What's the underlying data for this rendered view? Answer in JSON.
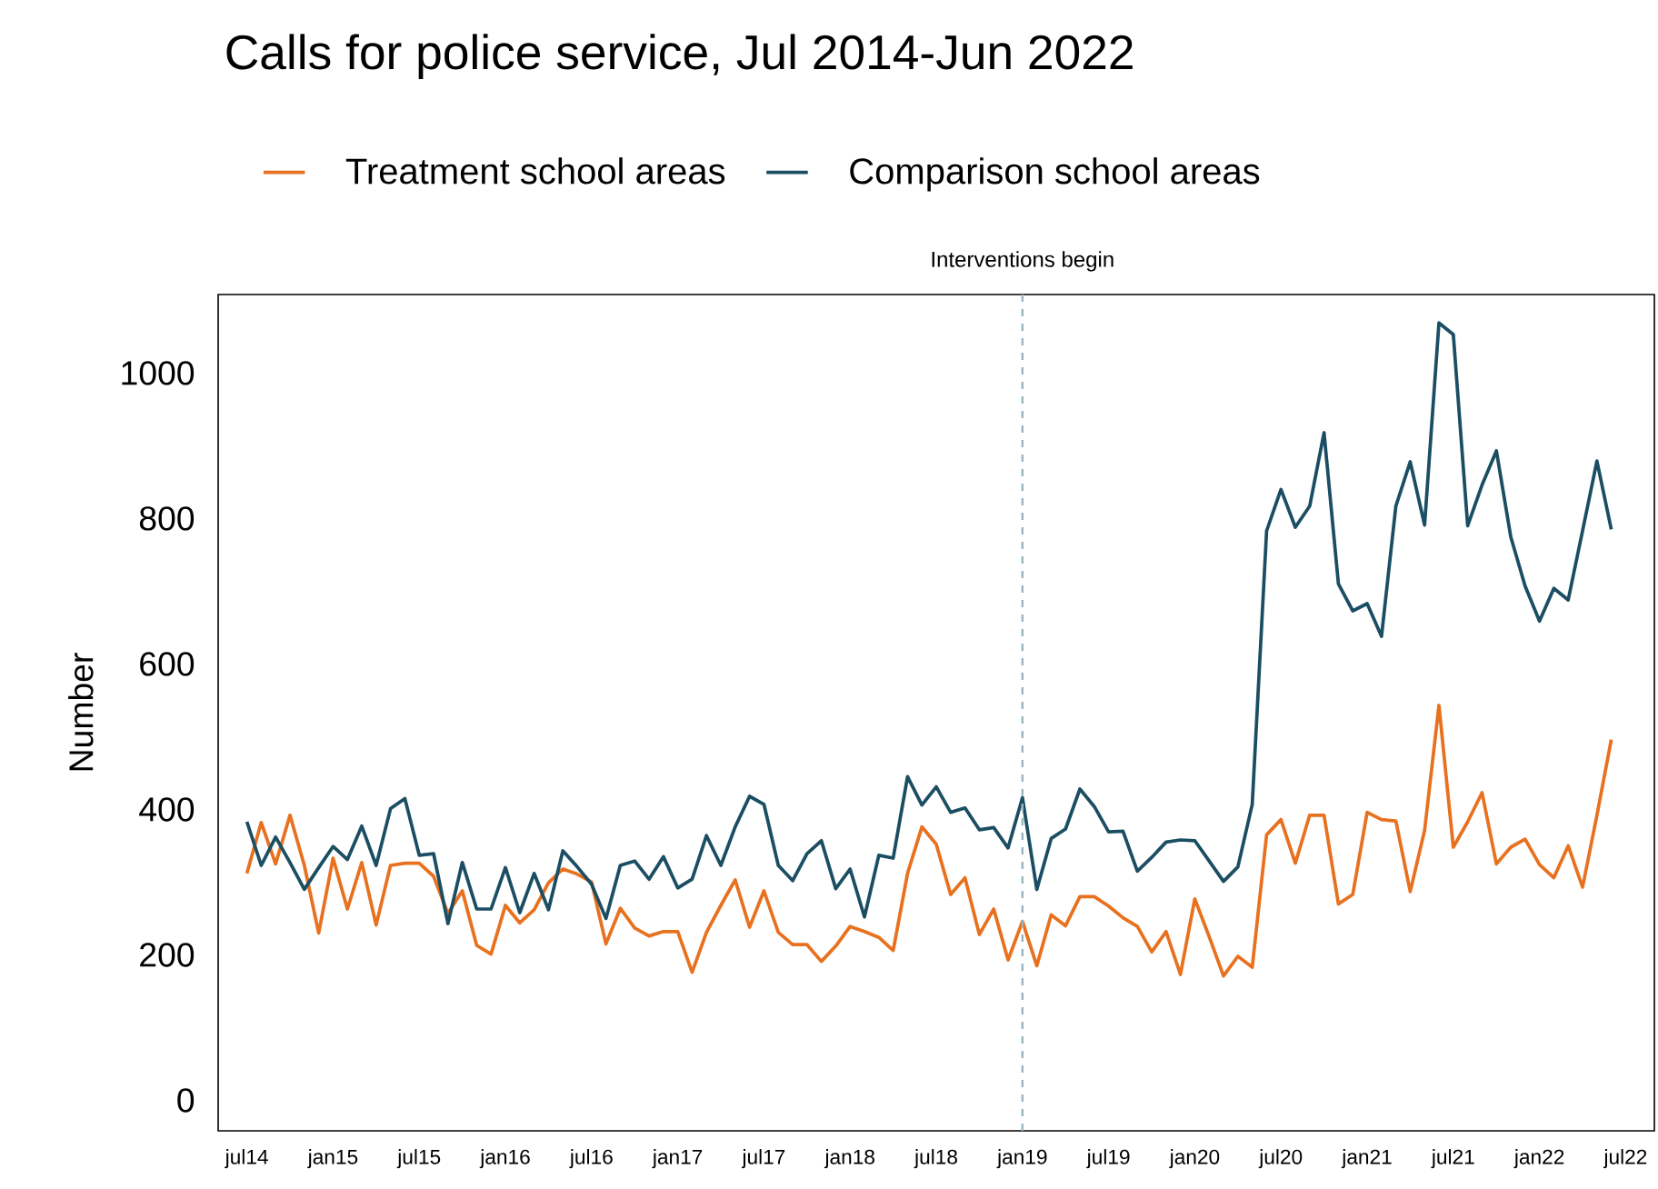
{
  "chart_data": {
    "type": "line",
    "title": "Calls for police service, Jul 2014-Jun 2022",
    "ylabel": "Number",
    "x": [
      "2014-07",
      "2014-08",
      "2014-09",
      "2014-10",
      "2014-11",
      "2014-12",
      "2015-01",
      "2015-02",
      "2015-03",
      "2015-04",
      "2015-05",
      "2015-06",
      "2015-07",
      "2015-08",
      "2015-09",
      "2015-10",
      "2015-11",
      "2015-12",
      "2016-01",
      "2016-02",
      "2016-03",
      "2016-04",
      "2016-05",
      "2016-06",
      "2016-07",
      "2016-08",
      "2016-09",
      "2016-10",
      "2016-11",
      "2016-12",
      "2017-01",
      "2017-02",
      "2017-03",
      "2017-04",
      "2017-05",
      "2017-06",
      "2017-07",
      "2017-08",
      "2017-09",
      "2017-10",
      "2017-11",
      "2017-12",
      "2018-01",
      "2018-02",
      "2018-03",
      "2018-04",
      "2018-05",
      "2018-06",
      "2018-07",
      "2018-08",
      "2018-09",
      "2018-10",
      "2018-11",
      "2018-12",
      "2019-01",
      "2019-02",
      "2019-03",
      "2019-04",
      "2019-05",
      "2019-06",
      "2019-07",
      "2019-08",
      "2019-09",
      "2019-10",
      "2019-11",
      "2019-12",
      "2020-01",
      "2020-02",
      "2020-03",
      "2020-04",
      "2020-05",
      "2020-06",
      "2020-07",
      "2020-08",
      "2020-09",
      "2020-10",
      "2020-11",
      "2020-12",
      "2021-01",
      "2021-02",
      "2021-03",
      "2021-04",
      "2021-05",
      "2021-06",
      "2021-07",
      "2021-08",
      "2021-09",
      "2021-10",
      "2021-11",
      "2021-12",
      "2022-01",
      "2022-02",
      "2022-03",
      "2022-04",
      "2022-05",
      "2022-06"
    ],
    "series": [
      {
        "name": "Treatment school areas",
        "color": "#e8711f",
        "values": [
          312,
          382,
          325,
          392,
          323,
          230,
          333,
          263,
          327,
          241,
          323,
          326,
          326,
          308,
          257,
          288,
          213,
          201,
          268,
          244,
          262,
          299,
          318,
          311,
          300,
          215,
          264,
          237,
          226,
          232,
          232,
          176,
          231,
          268,
          303,
          238,
          288,
          231,
          214,
          214,
          191,
          212,
          239,
          232,
          224,
          206,
          312,
          376,
          352,
          283,
          306,
          228,
          263,
          193,
          246,
          185,
          255,
          240,
          280,
          280,
          267,
          251,
          239,
          204,
          232,
          173,
          277,
          225,
          171,
          198,
          183,
          365,
          386,
          326,
          392,
          392,
          270,
          283,
          396,
          386,
          384,
          287,
          371,
          543,
          348,
          383,
          423,
          325,
          348,
          359,
          324,
          306,
          350,
          293,
          392,
          496
        ]
      },
      {
        "name": "Comparison school areas",
        "color": "#1b4e63",
        "values": [
          383,
          323,
          362,
          327,
          290,
          320,
          349,
          331,
          377,
          323,
          401,
          415,
          337,
          339,
          243,
          327,
          263,
          263,
          320,
          258,
          312,
          262,
          343,
          321,
          297,
          250,
          323,
          329,
          304,
          335,
          292,
          304,
          364,
          323,
          376,
          418,
          407,
          323,
          302,
          339,
          357,
          291,
          318,
          252,
          337,
          333,
          445,
          406,
          431,
          396,
          402,
          372,
          375,
          347,
          416,
          290,
          360,
          373,
          428,
          404,
          369,
          370,
          315,
          334,
          355,
          358,
          357,
          329,
          301,
          321,
          407,
          783,
          840,
          788,
          817,
          918,
          710,
          673,
          683,
          638,
          817,
          878,
          791,
          1069,
          1053,
          790,
          846,
          893,
          775,
          707,
          659,
          704,
          688,
          783,
          879,
          785
        ]
      }
    ],
    "xlim": [
      "2014-05",
      "2022-09"
    ],
    "xticks": [
      {
        "value": "2014-07",
        "label": "jul14"
      },
      {
        "value": "2015-01",
        "label": "jan15"
      },
      {
        "value": "2015-07",
        "label": "jul15"
      },
      {
        "value": "2016-01",
        "label": "jan16"
      },
      {
        "value": "2016-07",
        "label": "jul16"
      },
      {
        "value": "2017-01",
        "label": "jan17"
      },
      {
        "value": "2017-07",
        "label": "jul17"
      },
      {
        "value": "2018-01",
        "label": "jan18"
      },
      {
        "value": "2018-07",
        "label": "jul18"
      },
      {
        "value": "2019-01",
        "label": "jan19"
      },
      {
        "value": "2019-07",
        "label": "jul19"
      },
      {
        "value": "2020-01",
        "label": "jan20"
      },
      {
        "value": "2020-07",
        "label": "jul20"
      },
      {
        "value": "2021-01",
        "label": "jan21"
      },
      {
        "value": "2021-07",
        "label": "jul21"
      },
      {
        "value": "2022-01",
        "label": "jan22"
      },
      {
        "value": "2022-07",
        "label": "jul22"
      }
    ],
    "ylim": [
      -42,
      1108
    ],
    "yticks": [
      0,
      200,
      400,
      600,
      800,
      1000
    ],
    "ref_lines": [
      {
        "axis": "x",
        "value": "2019-01",
        "label": "Interventions begin",
        "color": "#9bb4c4",
        "line_style": "dashed"
      }
    ],
    "legend": "top left"
  }
}
